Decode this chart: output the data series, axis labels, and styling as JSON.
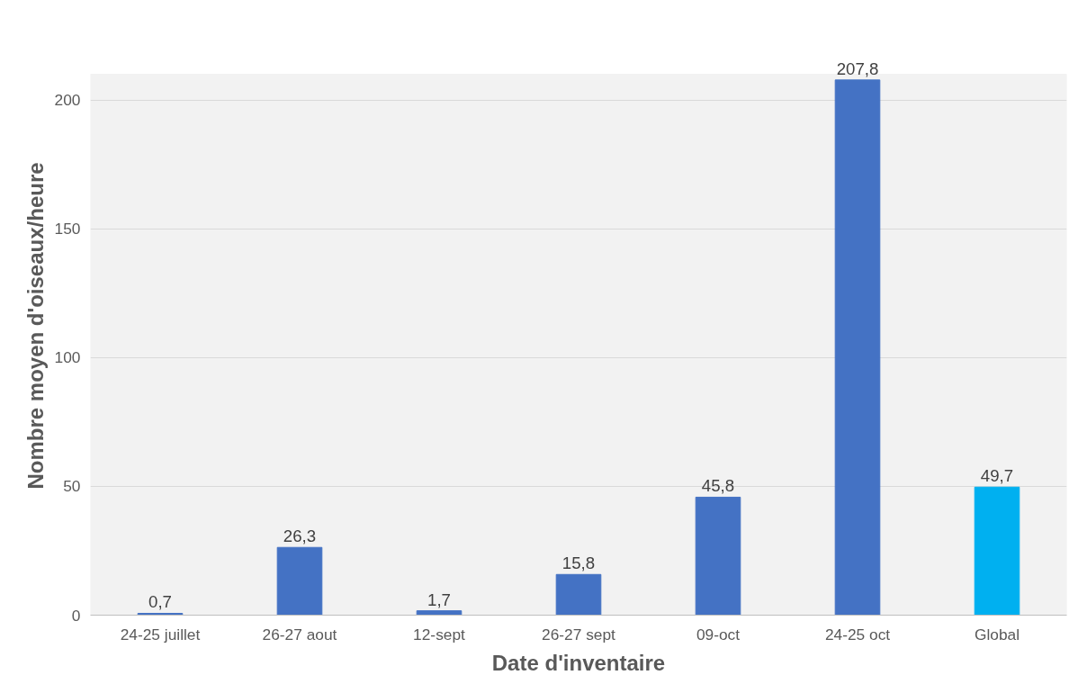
{
  "chart_data": {
    "type": "bar",
    "xlabel": "Date d'inventaire",
    "ylabel": "Nombre moyen d'oiseaux/heure",
    "categories": [
      "24-25 juillet",
      "26-27 aout",
      "12-sept",
      "26-27 sept",
      "09-oct",
      "24-25 oct",
      "Global"
    ],
    "values": [
      0.7,
      26.3,
      1.7,
      15.8,
      45.8,
      207.8,
      49.7
    ],
    "colors": [
      "#4472c4",
      "#4472c4",
      "#4472c4",
      "#4472c4",
      "#4472c4",
      "#4472c4",
      "#00b0f0"
    ],
    "value_labels": [
      "0,7",
      "26,3",
      "1,7",
      "15,8",
      "45,8",
      "207,8",
      "49,7"
    ],
    "ylim": [
      0,
      210
    ],
    "yticks": [
      0,
      50,
      100,
      150,
      200
    ],
    "grid": "y"
  }
}
